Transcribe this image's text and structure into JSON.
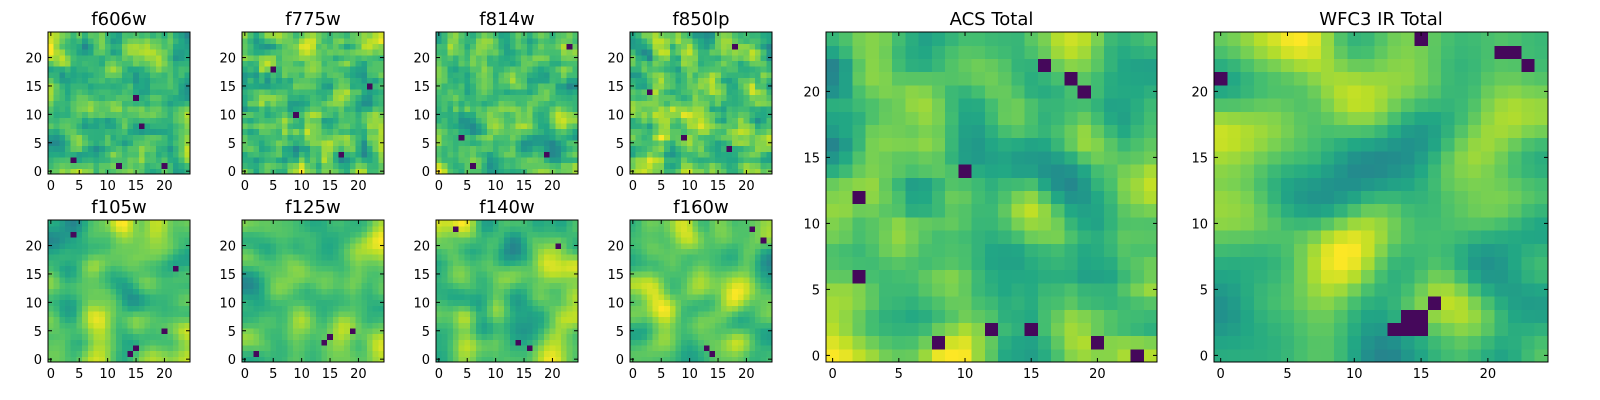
{
  "colormap": "viridis",
  "colors": {
    "background": "#ffffff",
    "axis": "#000000"
  },
  "chart_data": [
    {
      "type": "heatmap",
      "title": "f606w",
      "seed": 11,
      "smoothness": 0.15,
      "xticks": [
        "0",
        "5",
        "10",
        "15",
        "20"
      ],
      "yticks": [
        "0",
        "5",
        "10",
        "15",
        "20"
      ],
      "xlim": [
        0,
        24
      ],
      "ylim": [
        0,
        24
      ],
      "grid_size": 25,
      "dark_spots": [
        [
          12,
          1
        ],
        [
          16,
          8
        ],
        [
          20,
          1
        ],
        [
          15,
          13
        ],
        [
          4,
          2
        ]
      ]
    },
    {
      "type": "heatmap",
      "title": "f775w",
      "seed": 23,
      "smoothness": 0.15,
      "xticks": [
        "0",
        "5",
        "10",
        "15",
        "20"
      ],
      "yticks": [
        "0",
        "5",
        "10",
        "15",
        "20"
      ],
      "xlim": [
        0,
        24
      ],
      "ylim": [
        0,
        24
      ],
      "grid_size": 25,
      "dark_spots": [
        [
          17,
          3
        ],
        [
          9,
          10
        ],
        [
          22,
          15
        ],
        [
          5,
          18
        ]
      ]
    },
    {
      "type": "heatmap",
      "title": "f814w",
      "seed": 37,
      "smoothness": 0.2,
      "xticks": [
        "0",
        "5",
        "10",
        "15",
        "20"
      ],
      "yticks": [
        "0",
        "5",
        "10",
        "15",
        "20"
      ],
      "xlim": [
        0,
        24
      ],
      "ylim": [
        0,
        24
      ],
      "grid_size": 25,
      "dark_spots": [
        [
          6,
          1
        ],
        [
          19,
          3
        ],
        [
          4,
          6
        ],
        [
          23,
          22
        ]
      ]
    },
    {
      "type": "heatmap",
      "title": "f850lp",
      "seed": 41,
      "smoothness": 0.15,
      "xticks": [
        "0",
        "5",
        "10",
        "15",
        "20"
      ],
      "yticks": [
        "0",
        "5",
        "10",
        "15",
        "20"
      ],
      "xlim": [
        0,
        24
      ],
      "ylim": [
        0,
        24
      ],
      "grid_size": 25,
      "dark_spots": [
        [
          9,
          6
        ],
        [
          17,
          4
        ],
        [
          18,
          22
        ],
        [
          3,
          14
        ]
      ]
    },
    {
      "type": "heatmap",
      "title": "f105w",
      "seed": 53,
      "smoothness": 0.55,
      "xticks": [
        "0",
        "5",
        "10",
        "15",
        "20"
      ],
      "yticks": [
        "0",
        "5",
        "10",
        "15",
        "20"
      ],
      "xlim": [
        0,
        24
      ],
      "ylim": [
        0,
        24
      ],
      "grid_size": 25,
      "dark_spots": [
        [
          14,
          1
        ],
        [
          15,
          2
        ],
        [
          20,
          5
        ],
        [
          22,
          16
        ],
        [
          4,
          22
        ]
      ]
    },
    {
      "type": "heatmap",
      "title": "f125w",
      "seed": 67,
      "smoothness": 0.6,
      "xticks": [
        "0",
        "5",
        "10",
        "15",
        "20"
      ],
      "yticks": [
        "0",
        "5",
        "10",
        "15",
        "20"
      ],
      "xlim": [
        0,
        24
      ],
      "ylim": [
        0,
        24
      ],
      "grid_size": 25,
      "dark_spots": [
        [
          14,
          3
        ],
        [
          15,
          4
        ],
        [
          19,
          5
        ],
        [
          2,
          1
        ]
      ]
    },
    {
      "type": "heatmap",
      "title": "f140w",
      "seed": 71,
      "smoothness": 0.5,
      "xticks": [
        "0",
        "5",
        "10",
        "15",
        "20"
      ],
      "yticks": [
        "0",
        "5",
        "10",
        "15",
        "20"
      ],
      "xlim": [
        0,
        24
      ],
      "ylim": [
        0,
        24
      ],
      "grid_size": 25,
      "dark_spots": [
        [
          14,
          3
        ],
        [
          16,
          2
        ],
        [
          3,
          23
        ],
        [
          21,
          20
        ]
      ]
    },
    {
      "type": "heatmap",
      "title": "f160w",
      "seed": 83,
      "smoothness": 0.55,
      "xticks": [
        "0",
        "5",
        "10",
        "15",
        "20"
      ],
      "yticks": [
        "0",
        "5",
        "10",
        "15",
        "20"
      ],
      "xlim": [
        0,
        24
      ],
      "ylim": [
        0,
        24
      ],
      "grid_size": 25,
      "dark_spots": [
        [
          14,
          1
        ],
        [
          13,
          2
        ],
        [
          21,
          23
        ],
        [
          23,
          21
        ]
      ]
    },
    {
      "type": "heatmap",
      "title": "ACS Total",
      "seed": 97,
      "smoothness": 0.3,
      "xticks": [
        "0",
        "5",
        "10",
        "15",
        "20"
      ],
      "yticks": [
        "0",
        "5",
        "10",
        "15",
        "20"
      ],
      "xlim": [
        0,
        24
      ],
      "ylim": [
        0,
        24
      ],
      "grid_size": 25,
      "dark_spots": [
        [
          18,
          21
        ],
        [
          19,
          20
        ],
        [
          2,
          12
        ],
        [
          2,
          6
        ],
        [
          12,
          2
        ],
        [
          15,
          2
        ],
        [
          10,
          14
        ],
        [
          16,
          22
        ],
        [
          23,
          0
        ],
        [
          20,
          1
        ],
        [
          8,
          1
        ]
      ]
    },
    {
      "type": "heatmap",
      "title": "WFC3 IR Total",
      "seed": 101,
      "smoothness": 0.7,
      "xticks": [
        "0",
        "5",
        "10",
        "15",
        "20"
      ],
      "yticks": [
        "0",
        "5",
        "10",
        "15",
        "20"
      ],
      "xlim": [
        0,
        24
      ],
      "ylim": [
        0,
        24
      ],
      "grid_size": 25,
      "dark_spots": [
        [
          14,
          2
        ],
        [
          15,
          3
        ],
        [
          13,
          2
        ],
        [
          15,
          2
        ],
        [
          14,
          3
        ],
        [
          21,
          23
        ],
        [
          22,
          23
        ],
        [
          23,
          22
        ],
        [
          15,
          24
        ],
        [
          0,
          21
        ],
        [
          16,
          4
        ]
      ]
    }
  ]
}
